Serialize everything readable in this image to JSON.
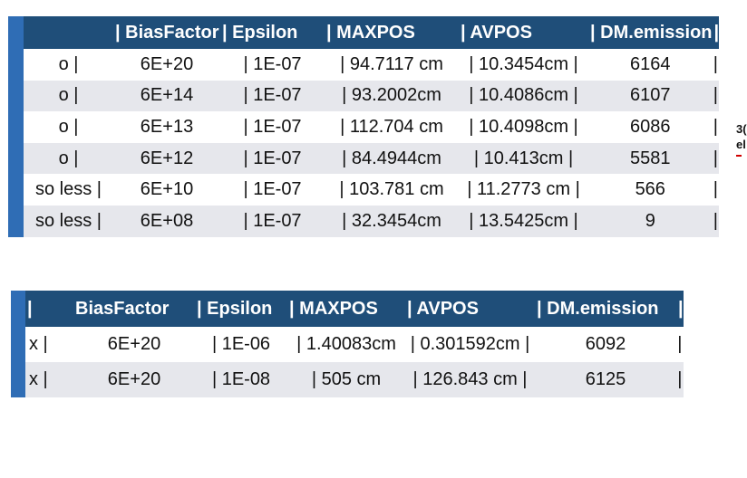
{
  "table1": {
    "headers": [
      "",
      "| BiasFactor",
      "| Epsilon",
      "| MAXPOS",
      "|  AVPOS",
      "| DM.emission",
      "|"
    ],
    "rows": [
      [
        "o           |",
        "6E+20",
        "|   1E-07",
        "| 94.7117 cm",
        "| 10.3454cm   |",
        "6164",
        "|"
      ],
      [
        "o           |",
        "6E+14",
        "|   1E-07",
        "| 93.2002cm",
        "| 10.4086cm   |",
        "6107",
        "|"
      ],
      [
        "o           |",
        "6E+13",
        "|   1E-07",
        "| 112.704 cm",
        "| 10.4098cm   |",
        "6086",
        "|"
      ],
      [
        "o           |",
        "6E+12",
        "|   1E-07",
        "| 84.4944cm",
        "|  10.413cm    |",
        "5581",
        "|"
      ],
      [
        "so less  |",
        "6E+10",
        "|   1E-07",
        "| 103.781 cm",
        "| 11.2773 cm |",
        "566",
        "|"
      ],
      [
        "so less  |",
        "6E+08",
        "|   1E-07",
        "| 32.3454cm",
        "| 13.5425cm   |",
        "9",
        "|"
      ]
    ]
  },
  "table2": {
    "headers": [
      "|",
      "BiasFactor",
      "| Epsilon",
      "| MAXPOS",
      "|     AVPOS",
      "| DM.emission",
      "|"
    ],
    "rows": [
      [
        "x   |",
        "6E+20",
        "|    1E-06",
        "| 1.40083cm",
        "| 0.301592cm  |",
        "6092",
        "|"
      ],
      [
        "x   |",
        "6E+20",
        "|    1E-08",
        "|    505 cm",
        "|  126.843 cm   |",
        "6125",
        "|"
      ]
    ]
  },
  "side_fragment": [
    "3(",
    "el"
  ]
}
